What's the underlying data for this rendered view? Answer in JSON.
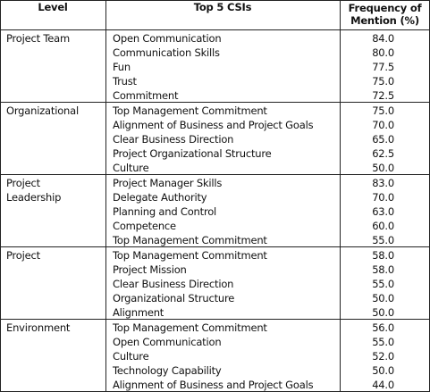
{
  "header": {
    "level": "Level",
    "csis": "Top 5 CSIs",
    "frequency": [
      "Frequency of",
      "Mention (%)"
    ]
  },
  "groups": [
    {
      "level": [
        "Project Team"
      ],
      "items": [
        {
          "csi": "Open Communication",
          "frequency": "84.0"
        },
        {
          "csi": "Communication Skills",
          "frequency": "80.0"
        },
        {
          "csi": "Fun",
          "frequency": "77.5"
        },
        {
          "csi": "Trust",
          "frequency": "75.0"
        },
        {
          "csi": "Commitment",
          "frequency": "72.5"
        }
      ]
    },
    {
      "level": [
        "Organizational"
      ],
      "items": [
        {
          "csi": "Top Management Commitment",
          "frequency": "75.0"
        },
        {
          "csi": "Alignment of Business and Project Goals",
          "frequency": "70.0"
        },
        {
          "csi": "Clear Business Direction",
          "frequency": "65.0"
        },
        {
          "csi": "Project Organizational Structure",
          "frequency": "62.5"
        },
        {
          "csi": "Culture",
          "frequency": "50.0"
        }
      ]
    },
    {
      "level": [
        "Project",
        "Leadership"
      ],
      "items": [
        {
          "csi": "Project Manager Skills",
          "frequency": "83.0"
        },
        {
          "csi": "Delegate Authority",
          "frequency": "70.0"
        },
        {
          "csi": "Planning and Control",
          "frequency": "63.0"
        },
        {
          "csi": "Competence",
          "frequency": "60.0"
        },
        {
          "csi": "Top Management Commitment",
          "frequency": "55.0"
        }
      ]
    },
    {
      "level": [
        "Project"
      ],
      "items": [
        {
          "csi": "Top Management Commitment",
          "frequency": "58.0"
        },
        {
          "csi": "Project Mission",
          "frequency": "58.0"
        },
        {
          "csi": "Clear Business Direction",
          "frequency": "55.0"
        },
        {
          "csi": "Organizational Structure",
          "frequency": "50.0"
        },
        {
          "csi": "Alignment",
          "frequency": "50.0"
        }
      ]
    },
    {
      "level": [
        "Environment"
      ],
      "items": [
        {
          "csi": "Top Management Commitment",
          "frequency": "56.0"
        },
        {
          "csi": "Open Communication",
          "frequency": "55.0"
        },
        {
          "csi": "Culture",
          "frequency": "52.0"
        },
        {
          "csi": "Technology Capability",
          "frequency": "50.0"
        },
        {
          "csi": "Alignment of Business and Project Goals",
          "frequency": "44.0"
        }
      ]
    }
  ]
}
